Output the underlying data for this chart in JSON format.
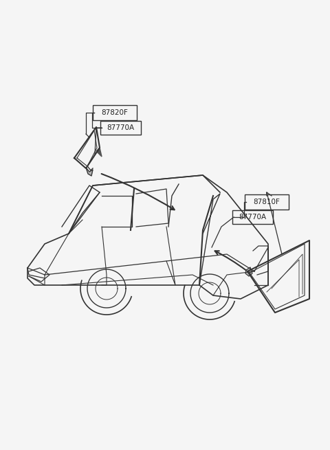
{
  "bg_color": "#f5f5f5",
  "title": "",
  "fig_width": 4.8,
  "fig_height": 6.55,
  "dpi": 100,
  "labels": {
    "left_top": "87820F",
    "left_bottom": "87770A",
    "right_top": "87810F",
    "right_bottom": "87770A"
  },
  "line_color": "#333333",
  "text_color": "#222222",
  "font_size": 7.5
}
